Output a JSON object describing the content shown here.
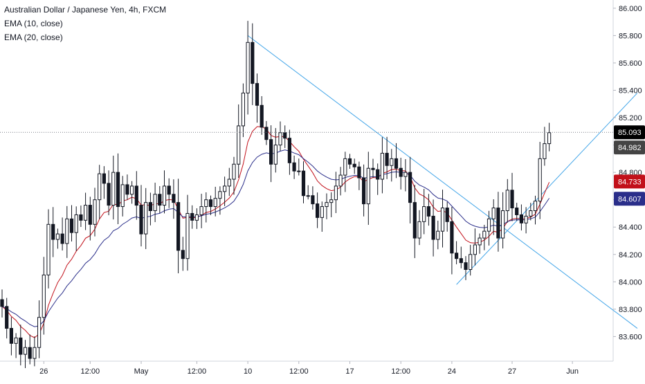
{
  "legend": {
    "title": "Australian Dollar / Japanese Yen, 4h, FXCM",
    "ema10": "EMA (10, close)",
    "ema20": "EMA (20, close)"
  },
  "colors": {
    "up": "#131722",
    "down": "#131722",
    "up_fill": "#ffffff",
    "ema10": "#c2101a",
    "ema20": "#2a2e8a",
    "trendline": "#42a5e8",
    "last_price": "#000000",
    "prev_close": "#444444"
  },
  "chart_data": {
    "type": "candlestick",
    "y_axis": {
      "ylim": [
        83.42,
        86.06
      ],
      "ticks": [
        "86.000",
        "85.800",
        "85.600",
        "85.400",
        "85.200",
        "85.000",
        "84.800",
        "84.600",
        "84.400",
        "84.200",
        "84.000",
        "83.800",
        "83.600"
      ]
    },
    "x_axis": {
      "ticks": [
        {
          "label": "26",
          "bar": 9
        },
        {
          "label": "12:00",
          "bar": 19
        },
        {
          "label": "May",
          "bar": 30
        },
        {
          "label": "12:00",
          "bar": 42
        },
        {
          "label": "10",
          "bar": 53
        },
        {
          "label": "12:00",
          "bar": 64
        },
        {
          "label": "17",
          "bar": 75
        },
        {
          "label": "12:00",
          "bar": 86
        },
        {
          "label": "24",
          "bar": 97
        },
        {
          "label": "27",
          "bar": 110
        },
        {
          "label": "Jun",
          "bar": 123
        }
      ]
    },
    "price_badges": [
      {
        "label": "85.093",
        "value": 85.093,
        "kind": "last"
      },
      {
        "label": "84.982",
        "value": 84.982,
        "kind": "prev"
      },
      {
        "label": "84.733",
        "value": 84.733,
        "kind": "ema10"
      },
      {
        "label": "84.607",
        "value": 84.607,
        "kind": "ema20"
      }
    ],
    "series": [
      {
        "name": "EMA (10, close)",
        "indicator": "ema",
        "period": 10
      },
      {
        "name": "EMA (20, close)",
        "indicator": "ema",
        "period": 20
      }
    ],
    "closes": [
      83.82,
      83.66,
      83.55,
      83.59,
      83.47,
      83.52,
      83.44,
      83.52,
      83.74,
      84.05,
      84.42,
      84.31,
      84.35,
      84.28,
      84.46,
      84.36,
      84.49,
      84.45,
      84.56,
      84.42,
      84.6,
      84.79,
      84.72,
      84.56,
      84.8,
      84.55,
      84.71,
      84.64,
      84.7,
      84.56,
      84.35,
      84.58,
      84.52,
      84.64,
      84.56,
      84.7,
      84.64,
      84.58,
      84.23,
      84.17,
      84.5,
      84.45,
      84.49,
      84.55,
      84.6,
      84.55,
      84.61,
      84.66,
      84.7,
      84.75,
      84.86,
      85.14,
      85.38,
      85.75,
      85.45,
      85.29,
      85.13,
      85.04,
      84.86,
      85.0,
      85.09,
      85.05,
      84.87,
      84.81,
      84.81,
      84.63,
      84.63,
      84.57,
      84.47,
      84.55,
      84.58,
      84.6,
      84.7,
      84.78,
      84.9,
      84.86,
      84.84,
      84.76,
      84.57,
      84.83,
      84.82,
      84.75,
      84.94,
      84.85,
      84.9,
      84.83,
      84.77,
      84.8,
      84.58,
      84.32,
      84.44,
      84.55,
      84.48,
      84.31,
      84.37,
      84.54,
      84.44,
      84.21,
      84.17,
      84.14,
      84.09,
      84.2,
      84.27,
      84.32,
      84.37,
      84.46,
      84.54,
      84.32,
      84.52,
      84.67,
      84.54,
      84.49,
      84.43,
      84.48,
      84.52,
      84.59,
      84.9,
      85.01,
      85.09
    ],
    "last_close": 85.093,
    "trendlines": [
      {
        "from": [
          53,
          85.8
        ],
        "to": [
          137,
          83.66
        ]
      },
      {
        "from": [
          98,
          83.98
        ],
        "to": [
          137,
          85.38
        ]
      }
    ]
  }
}
